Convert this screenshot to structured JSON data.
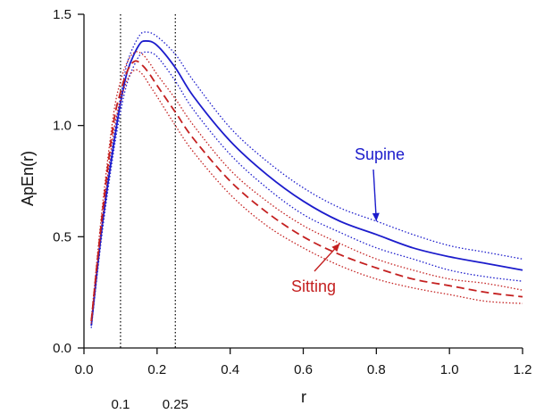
{
  "chart_data": {
    "type": "line",
    "title": "",
    "xlabel": "r",
    "ylabel": "ApEn(r)",
    "xlim": [
      0,
      1.2
    ],
    "ylim": [
      0,
      1.5
    ],
    "grid": false,
    "x_ticks": [
      0.0,
      0.2,
      0.4,
      0.6,
      0.8,
      1.0,
      1.2
    ],
    "x_tick_labels": [
      "0.0",
      "0.2",
      "0.4",
      "0.6",
      "0.8",
      "1.0",
      "1.2"
    ],
    "y_ticks": [
      0.0,
      0.5,
      1.0,
      1.5
    ],
    "y_tick_labels": [
      "0.0",
      "0.5",
      "1.0",
      "1.5"
    ],
    "reference_lines": [
      {
        "x": 0.1,
        "label": "0.1",
        "style": "dotted"
      },
      {
        "x": 0.25,
        "label": "0.25",
        "style": "dotted"
      }
    ],
    "colors": {
      "supine": "#1c1ccc",
      "sitting": "#c42020"
    },
    "series": [
      {
        "group": "Supine",
        "style": "solid",
        "role": "mean",
        "x": [
          0.02,
          0.05,
          0.08,
          0.1,
          0.12,
          0.15,
          0.17,
          0.2,
          0.25,
          0.3,
          0.4,
          0.5,
          0.6,
          0.7,
          0.8,
          0.9,
          1.0,
          1.1,
          1.2
        ],
        "y": [
          0.1,
          0.55,
          0.9,
          1.1,
          1.25,
          1.36,
          1.38,
          1.36,
          1.26,
          1.13,
          0.93,
          0.78,
          0.66,
          0.57,
          0.51,
          0.45,
          0.41,
          0.38,
          0.35
        ]
      },
      {
        "group": "Supine",
        "style": "dotted",
        "role": "upper",
        "x": [
          0.02,
          0.05,
          0.08,
          0.1,
          0.12,
          0.15,
          0.17,
          0.2,
          0.25,
          0.3,
          0.4,
          0.5,
          0.6,
          0.7,
          0.8,
          0.9,
          1.0,
          1.1,
          1.2
        ],
        "y": [
          0.12,
          0.57,
          0.93,
          1.13,
          1.29,
          1.4,
          1.42,
          1.4,
          1.32,
          1.2,
          0.99,
          0.84,
          0.72,
          0.63,
          0.57,
          0.51,
          0.46,
          0.43,
          0.4
        ]
      },
      {
        "group": "Supine",
        "style": "dotted",
        "role": "lower",
        "x": [
          0.02,
          0.05,
          0.08,
          0.1,
          0.12,
          0.15,
          0.17,
          0.2,
          0.25,
          0.3,
          0.4,
          0.5,
          0.6,
          0.7,
          0.8,
          0.9,
          1.0,
          1.1,
          1.2
        ],
        "y": [
          0.09,
          0.52,
          0.87,
          1.06,
          1.2,
          1.31,
          1.33,
          1.31,
          1.2,
          1.07,
          0.87,
          0.72,
          0.6,
          0.52,
          0.45,
          0.4,
          0.35,
          0.32,
          0.3
        ]
      },
      {
        "group": "Sitting",
        "style": "dashed",
        "role": "mean",
        "x": [
          0.02,
          0.05,
          0.08,
          0.1,
          0.12,
          0.14,
          0.16,
          0.18,
          0.2,
          0.25,
          0.3,
          0.4,
          0.5,
          0.6,
          0.7,
          0.8,
          0.9,
          1.0,
          1.1,
          1.2
        ],
        "y": [
          0.12,
          0.6,
          1.0,
          1.15,
          1.25,
          1.29,
          1.27,
          1.23,
          1.18,
          1.06,
          0.94,
          0.75,
          0.61,
          0.5,
          0.42,
          0.36,
          0.31,
          0.28,
          0.25,
          0.23
        ]
      },
      {
        "group": "Sitting",
        "style": "dotted",
        "role": "upper",
        "x": [
          0.02,
          0.05,
          0.08,
          0.1,
          0.12,
          0.14,
          0.16,
          0.18,
          0.2,
          0.25,
          0.3,
          0.4,
          0.5,
          0.6,
          0.7,
          0.8,
          0.9,
          1.0,
          1.1,
          1.2
        ],
        "y": [
          0.13,
          0.63,
          1.04,
          1.2,
          1.29,
          1.33,
          1.32,
          1.28,
          1.23,
          1.12,
          1.0,
          0.8,
          0.66,
          0.55,
          0.47,
          0.4,
          0.35,
          0.31,
          0.29,
          0.26
        ]
      },
      {
        "group": "Sitting",
        "style": "dotted",
        "role": "lower",
        "x": [
          0.02,
          0.05,
          0.08,
          0.1,
          0.12,
          0.14,
          0.16,
          0.18,
          0.2,
          0.25,
          0.3,
          0.4,
          0.5,
          0.6,
          0.7,
          0.8,
          0.9,
          1.0,
          1.1,
          1.2
        ],
        "y": [
          0.11,
          0.57,
          0.96,
          1.11,
          1.21,
          1.25,
          1.23,
          1.18,
          1.13,
          1.0,
          0.88,
          0.69,
          0.55,
          0.45,
          0.37,
          0.31,
          0.27,
          0.24,
          0.21,
          0.2
        ]
      }
    ],
    "annotations": [
      {
        "text": "Supine",
        "group": "Supine",
        "arrow_to": {
          "x": 0.8,
          "y": 0.57
        }
      },
      {
        "text": "Sitting",
        "group": "Sitting",
        "arrow_to": {
          "x": 0.7,
          "y": 0.47
        }
      }
    ]
  }
}
